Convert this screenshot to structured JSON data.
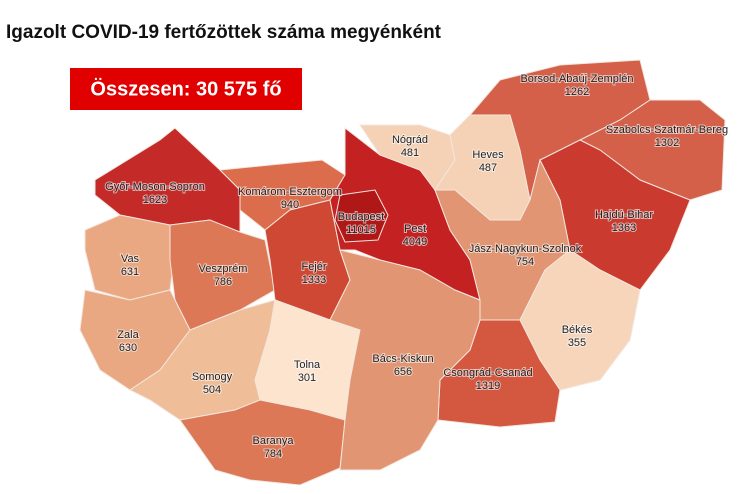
{
  "title": "Igazolt COVID-19 fertőzöttek száma megyénként",
  "total": "Összesen: 30 575 fő",
  "regions": [
    {
      "name": "Győr-Moson-Sopron",
      "value": 1623,
      "color": "#c42a28"
    },
    {
      "name": "Komárom-Esztergom",
      "value": 940,
      "color": "#db6c4c"
    },
    {
      "name": "Vas",
      "value": 631,
      "color": "#eaa882"
    },
    {
      "name": "Veszprém",
      "value": 786,
      "color": "#dc7856"
    },
    {
      "name": "Fejér",
      "value": 1333,
      "color": "#cf4834"
    },
    {
      "name": "Zala",
      "value": 630,
      "color": "#eaa882"
    },
    {
      "name": "Somogy",
      "value": 504,
      "color": "#efbd98"
    },
    {
      "name": "Tolna",
      "value": 301,
      "color": "#fce4cf"
    },
    {
      "name": "Baranya",
      "value": 784,
      "color": "#dc7856"
    },
    {
      "name": "Pest",
      "value": 4049,
      "color": "#c42222"
    },
    {
      "name": "Budapest",
      "value": 11015,
      "color": "#b01818"
    },
    {
      "name": "Nógrád",
      "value": 481,
      "color": "#f5d1b5"
    },
    {
      "name": "Heves",
      "value": 487,
      "color": "#f5d1b5"
    },
    {
      "name": "Borsod-Abaúj-Zemplén",
      "value": 1262,
      "color": "#d4604a"
    },
    {
      "name": "Szabolcs-Szatmár-Bereg",
      "value": 1302,
      "color": "#d4604a"
    },
    {
      "name": "Hajdú-Bihar",
      "value": 1363,
      "color": "#cb3a2f"
    },
    {
      "name": "Jász-Nagykun-Szolnok",
      "value": 754,
      "color": "#e29572"
    },
    {
      "name": "Békés",
      "value": 355,
      "color": "#f6d5bb"
    },
    {
      "name": "Csongrád-Csanád",
      "value": 1319,
      "color": "#d4573f"
    },
    {
      "name": "Bács-Kiskun",
      "value": 656,
      "color": "#e29572"
    }
  ]
}
